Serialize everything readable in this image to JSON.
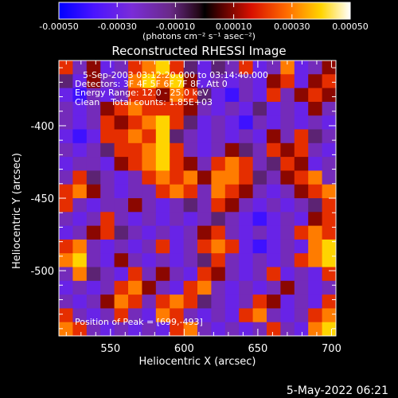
{
  "chart_data": {
    "type": "heatmap",
    "title": "Reconstructed RHESSI Image",
    "xlabel": "Heliocentric X (arcsec)",
    "ylabel": "Heliocentric Y (arcsec)",
    "xlim": [
      515,
      703
    ],
    "ylim": [
      -545,
      -355
    ],
    "x_ticks": [
      550,
      600,
      650,
      700
    ],
    "y_ticks": [
      -400,
      -450,
      -500
    ],
    "colorbar": {
      "min": -0.0005,
      "max": 0.0005,
      "tick_values": [
        -0.0005,
        -0.0003,
        -0.0001,
        0.0001,
        0.0003,
        0.0005
      ],
      "tick_labels": [
        "-0.00050",
        "-0.00030",
        "-0.00010",
        "0.00010",
        "0.00030",
        "0.00050"
      ],
      "unit_label": "(photons cm⁻² s⁻¹ asec⁻²)"
    },
    "annotations": {
      "time_range": "5-Sep-2003 03:12:20.000 to 03:14:40.000",
      "detectors": "Detectors: 3F 4F 5F 6F 7F 8F, Att 0",
      "energy_range": "Energy Range: 12.0 - 25.0 keV",
      "clean": "Clean    Total counts: 1.85E+03",
      "peak": "Position of Peak = [699,-493]"
    },
    "peak_position": [
      699,
      -493
    ],
    "image_flux": [
      [
        0.0002,
        -0.0002,
        0.0001,
        -0.0003,
        -0.0002,
        0.0002,
        0.0003,
        0.0004,
        0.0002,
        -0.0001,
        -0.0003,
        -0.0001,
        -0.0002,
        0.0002,
        -0.0003,
        -0.0002,
        0.0003,
        -0.0003,
        -0.0002,
        0.0001
      ],
      [
        -0.0001,
        -0.0003,
        0.0001,
        -0.0002,
        -0.0003,
        0.0003,
        0.0004,
        0.0003,
        0.0004,
        0.0001,
        -0.0003,
        -0.0002,
        -0.0003,
        -0.0002,
        -0.0003,
        0.0001,
        0.0002,
        -0.0003,
        0.0001,
        0.0002
      ],
      [
        -0.0003,
        -0.0004,
        -0.0002,
        -0.0003,
        -0.0002,
        0.0002,
        0.0002,
        0.0001,
        0.0003,
        0.0002,
        -0.0001,
        -0.0003,
        -0.0004,
        -0.0002,
        -0.0003,
        0.0002,
        -0.0002,
        0.0001,
        0.0002,
        0.0001
      ],
      [
        -0.0002,
        -0.0003,
        -0.0002,
        0.0001,
        0.0002,
        0.0003,
        0.0002,
        0.0002,
        0.0002,
        0.0001,
        -0.0002,
        -0.0003,
        -0.0002,
        -0.0003,
        -0.0001,
        -0.0003,
        -0.0002,
        -0.0003,
        0.0001,
        -0.0002
      ],
      [
        -0.0002,
        -0.0003,
        -0.0002,
        0.0002,
        0.0001,
        0.0002,
        0.0003,
        0.0004,
        0.0002,
        -0.0001,
        -0.0003,
        -0.0002,
        -0.0003,
        -0.0004,
        -0.0002,
        -0.0003,
        -0.0002,
        -0.0003,
        -0.0002,
        -0.0003
      ],
      [
        -0.0003,
        -0.0004,
        -0.0003,
        0.0002,
        0.0002,
        0.0003,
        0.0002,
        0.0004,
        -0.0001,
        -0.0002,
        -0.0003,
        -0.0002,
        -0.0003,
        -0.0002,
        -0.0003,
        0.0001,
        -0.0002,
        0.0002,
        -0.0001,
        -0.0002
      ],
      [
        -0.0002,
        -0.0003,
        -0.0002,
        -0.0001,
        0.0002,
        0.0002,
        0.0003,
        0.0004,
        0.0002,
        -0.0002,
        -0.0003,
        -0.0002,
        0.0001,
        -0.0001,
        -0.0002,
        0.0002,
        0.0001,
        0.0002,
        -0.0002,
        -0.0003
      ],
      [
        -0.0003,
        -0.0002,
        -0.0002,
        -0.0003,
        0.0001,
        0.0002,
        0.0003,
        0.0004,
        0.0002,
        0.0001,
        -0.0002,
        0.0002,
        0.0003,
        0.0002,
        -0.0002,
        -0.0001,
        0.0002,
        0.0001,
        -0.0003,
        -0.0002
      ],
      [
        -0.0002,
        0.0002,
        -0.0001,
        -0.0002,
        -0.0003,
        -0.0002,
        0.0002,
        0.0003,
        0.0002,
        0.0003,
        0.0001,
        0.0003,
        0.0003,
        0.0002,
        -0.0001,
        -0.0002,
        0.0001,
        0.0002,
        0.0003,
        -0.0002
      ],
      [
        0.0002,
        0.0003,
        0.0001,
        -0.0002,
        -0.0003,
        -0.0002,
        -0.0002,
        0.0002,
        0.0003,
        0.0002,
        -0.0002,
        0.0003,
        0.0002,
        0.0001,
        -0.0002,
        -0.0003,
        -0.0002,
        0.0001,
        0.0002,
        0.0003
      ],
      [
        0.0002,
        -0.0002,
        -0.0003,
        -0.0002,
        -0.0002,
        0.0001,
        -0.0002,
        -0.0003,
        -0.0002,
        -0.0001,
        -0.0002,
        0.0002,
        0.0001,
        -0.0002,
        -0.0003,
        -0.0002,
        -0.0003,
        -0.0002,
        -0.0001,
        0.0002
      ],
      [
        -0.0002,
        -0.0003,
        -0.0002,
        0.0002,
        -0.0002,
        -0.0003,
        -0.0002,
        -0.0003,
        -0.0002,
        -0.0003,
        -0.0002,
        -0.0001,
        -0.0002,
        -0.0003,
        -0.0004,
        -0.0003,
        -0.0002,
        -0.0003,
        0.0001,
        0.0002
      ],
      [
        -0.0003,
        -0.0002,
        0.0001,
        0.0002,
        -0.0001,
        -0.0002,
        -0.0003,
        -0.0002,
        -0.0003,
        -0.0002,
        0.0001,
        0.0002,
        -0.0002,
        -0.0003,
        -0.0002,
        -0.0003,
        -0.0002,
        0.0002,
        0.0003,
        0.0002
      ],
      [
        0.0002,
        0.0003,
        -0.0002,
        -0.0003,
        -0.0002,
        -0.0003,
        -0.0002,
        0.0002,
        -0.0003,
        -0.0002,
        0.0002,
        0.0003,
        0.0002,
        -0.0003,
        -0.0004,
        -0.0003,
        -0.0002,
        -0.0003,
        0.0003,
        0.0004
      ],
      [
        0.0003,
        0.0004,
        -0.0002,
        -0.0003,
        0.0001,
        -0.0002,
        -0.0003,
        -0.0002,
        -0.0003,
        -0.0002,
        -0.0001,
        0.0002,
        -0.0002,
        -0.0003,
        -0.0002,
        -0.0003,
        -0.0002,
        0.0002,
        0.0003,
        0.0004
      ],
      [
        -0.0002,
        0.0003,
        -0.0001,
        -0.0002,
        -0.0003,
        0.0002,
        -0.0002,
        0.0001,
        -0.0002,
        -0.0003,
        0.0002,
        0.0001,
        -0.0002,
        -0.0003,
        -0.0002,
        0.0002,
        -0.0003,
        -0.0002,
        -0.0003,
        0.0002
      ],
      [
        -0.0003,
        -0.0002,
        -0.0003,
        -0.0002,
        0.0002,
        0.0003,
        0.0001,
        -0.0002,
        -0.0003,
        0.0002,
        0.0003,
        -0.0002,
        -0.0003,
        -0.0002,
        -0.0003,
        -0.0002,
        0.0001,
        -0.0002,
        -0.0003,
        -0.0002
      ],
      [
        -0.0002,
        -0.0003,
        -0.0002,
        0.0001,
        0.0003,
        0.0002,
        -0.0002,
        0.0002,
        0.0003,
        0.0002,
        -0.0001,
        -0.0002,
        -0.0003,
        -0.0002,
        0.0002,
        0.0001,
        -0.0003,
        -0.0002,
        -0.0003,
        0.0002
      ],
      [
        0.0002,
        -0.0002,
        -0.0003,
        -0.0002,
        0.0002,
        -0.0002,
        -0.0003,
        0.0003,
        0.0002,
        -0.0002,
        -0.0003,
        -0.0002,
        -0.0003,
        0.0002,
        0.0003,
        -0.0002,
        -0.0003,
        -0.0002,
        0.0002,
        0.0003
      ],
      [
        0.0003,
        0.0002,
        -0.0002,
        -0.0003,
        -0.0002,
        -0.0003,
        -0.0002,
        -0.0003,
        0.0002,
        0.0003,
        -0.0002,
        -0.0003,
        -0.0002,
        -0.0003,
        -0.0002,
        0.0002,
        -0.0002,
        -0.0003,
        0.0003,
        0.0004
      ]
    ]
  },
  "footer": {
    "date_stamp": "5-May-2022 06:21"
  }
}
